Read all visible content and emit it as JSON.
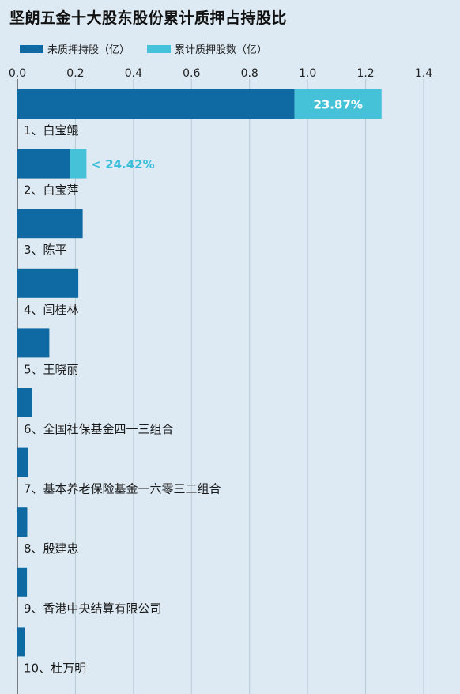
{
  "title": "坚朗五金十大股东股份累计质押占持股比",
  "legend": [
    {
      "label": "未质押持股（亿）",
      "color": "#0f6aa3"
    },
    {
      "label": "累计质押股数（亿）",
      "color": "#45c1d8"
    }
  ],
  "chart_data": {
    "type": "bar",
    "orientation": "horizontal",
    "stacked": true,
    "title": "坚朗五金十大股东股份累计质押占持股比",
    "xlim": [
      0,
      1.4
    ],
    "xticks": [
      "0.0",
      "0.2",
      "0.4",
      "0.6",
      "0.8",
      "1.0",
      "1.2",
      "1.4"
    ],
    "categories": [
      "1、白宝鲲",
      "2、白宝萍",
      "3、陈平",
      "4、闫桂林",
      "5、王晓丽",
      "6、全国社保基金四一三组合",
      "7、基本养老保险基金一六零三二组合",
      "8、殷建忠",
      "9、香港中央结算有限公司",
      "10、杜万明"
    ],
    "series": [
      {
        "name": "未质押持股（亿）",
        "color": "#0f6aa3",
        "values": [
          0.955,
          0.18,
          0.225,
          0.21,
          0.11,
          0.05,
          0.037,
          0.034,
          0.033,
          0.025
        ]
      },
      {
        "name": "累计质押股数（亿）",
        "color": "#45c1d8",
        "values": [
          0.3,
          0.058,
          0,
          0,
          0,
          0,
          0,
          0,
          0,
          0
        ]
      }
    ],
    "annotations": [
      {
        "category_index": 0,
        "text": "23.87%",
        "position": "inside"
      },
      {
        "category_index": 1,
        "text": "24.42%",
        "position": "outside-arrow"
      }
    ],
    "grid": true
  }
}
